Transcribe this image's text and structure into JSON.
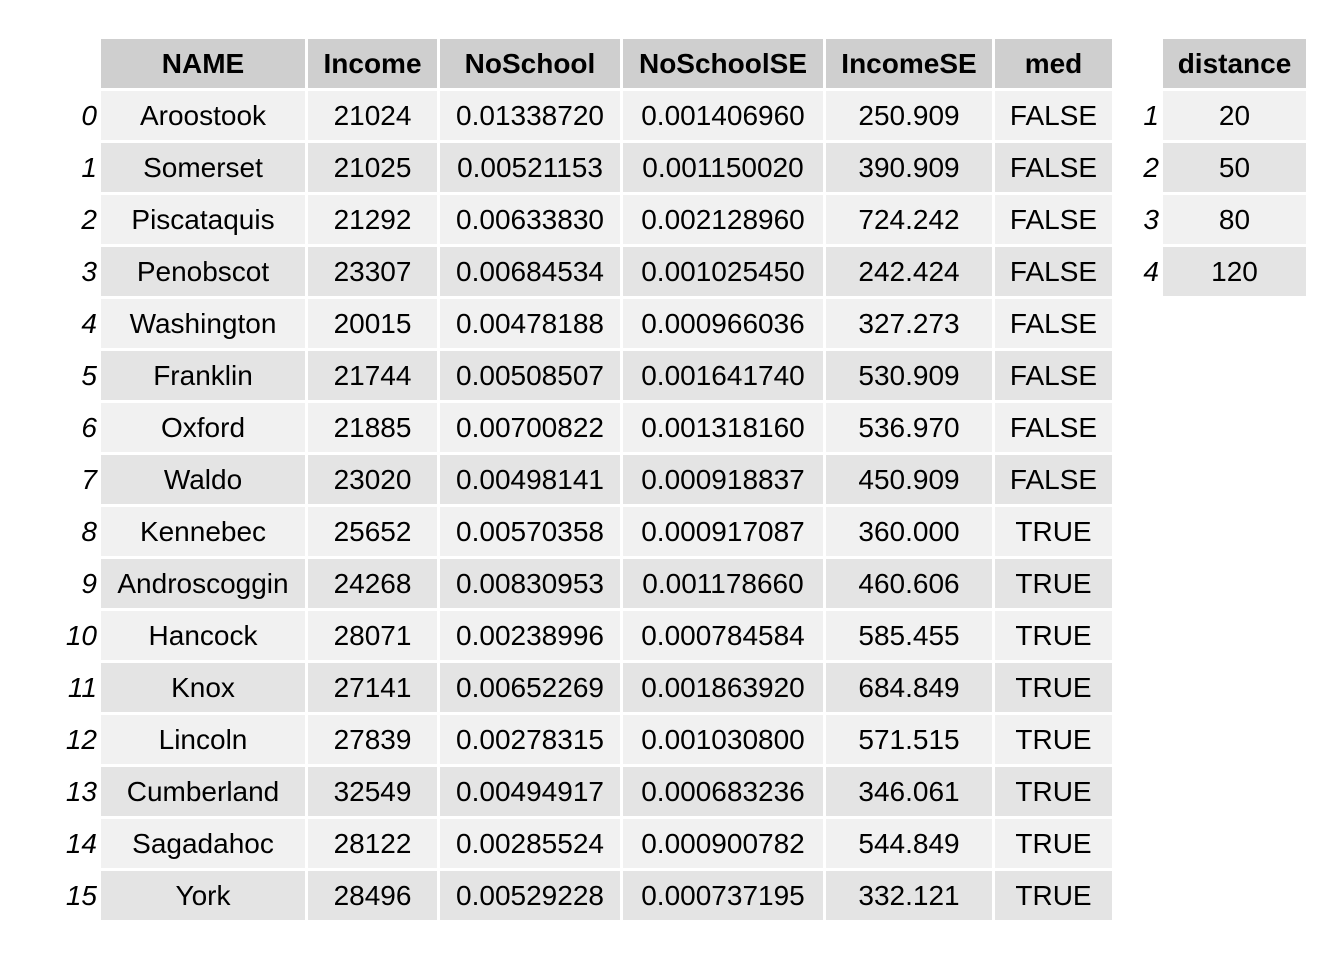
{
  "main_table": {
    "columns": [
      "NAME",
      "Income",
      "NoSchool",
      "NoSchoolSE",
      "IncomeSE",
      "med"
    ],
    "rows": [
      {
        "index": "0",
        "cells": [
          "Aroostook",
          "21024",
          "0.01338720",
          "0.001406960",
          "250.909",
          "FALSE"
        ]
      },
      {
        "index": "1",
        "cells": [
          "Somerset",
          "21025",
          "0.00521153",
          "0.001150020",
          "390.909",
          "FALSE"
        ]
      },
      {
        "index": "2",
        "cells": [
          "Piscataquis",
          "21292",
          "0.00633830",
          "0.002128960",
          "724.242",
          "FALSE"
        ]
      },
      {
        "index": "3",
        "cells": [
          "Penobscot",
          "23307",
          "0.00684534",
          "0.001025450",
          "242.424",
          "FALSE"
        ]
      },
      {
        "index": "4",
        "cells": [
          "Washington",
          "20015",
          "0.00478188",
          "0.000966036",
          "327.273",
          "FALSE"
        ]
      },
      {
        "index": "5",
        "cells": [
          "Franklin",
          "21744",
          "0.00508507",
          "0.001641740",
          "530.909",
          "FALSE"
        ]
      },
      {
        "index": "6",
        "cells": [
          "Oxford",
          "21885",
          "0.00700822",
          "0.001318160",
          "536.970",
          "FALSE"
        ]
      },
      {
        "index": "7",
        "cells": [
          "Waldo",
          "23020",
          "0.00498141",
          "0.000918837",
          "450.909",
          "FALSE"
        ]
      },
      {
        "index": "8",
        "cells": [
          "Kennebec",
          "25652",
          "0.00570358",
          "0.000917087",
          "360.000",
          "TRUE"
        ]
      },
      {
        "index": "9",
        "cells": [
          "Androscoggin",
          "24268",
          "0.00830953",
          "0.001178660",
          "460.606",
          "TRUE"
        ]
      },
      {
        "index": "10",
        "cells": [
          "Hancock",
          "28071",
          "0.00238996",
          "0.000784584",
          "585.455",
          "TRUE"
        ]
      },
      {
        "index": "11",
        "cells": [
          "Knox",
          "27141",
          "0.00652269",
          "0.001863920",
          "684.849",
          "TRUE"
        ]
      },
      {
        "index": "12",
        "cells": [
          "Lincoln",
          "27839",
          "0.00278315",
          "0.001030800",
          "571.515",
          "TRUE"
        ]
      },
      {
        "index": "13",
        "cells": [
          "Cumberland",
          "32549",
          "0.00494917",
          "0.000683236",
          "346.061",
          "TRUE"
        ]
      },
      {
        "index": "14",
        "cells": [
          "Sagadahoc",
          "28122",
          "0.00285524",
          "0.000900782",
          "544.849",
          "TRUE"
        ]
      },
      {
        "index": "15",
        "cells": [
          "York",
          "28496",
          "0.00529228",
          "0.000737195",
          "332.121",
          "TRUE"
        ]
      }
    ]
  },
  "distance_table": {
    "columns": [
      "distance"
    ],
    "rows": [
      {
        "index": "1",
        "cells": [
          "20"
        ]
      },
      {
        "index": "2",
        "cells": [
          "50"
        ]
      },
      {
        "index": "3",
        "cells": [
          "80"
        ]
      },
      {
        "index": "4",
        "cells": [
          "120"
        ]
      }
    ]
  },
  "colors": {
    "header_bg": "#cfcfcf",
    "row_light": "#f1f1f1",
    "row_dark": "#e4e4e4",
    "background": "#ffffff"
  }
}
